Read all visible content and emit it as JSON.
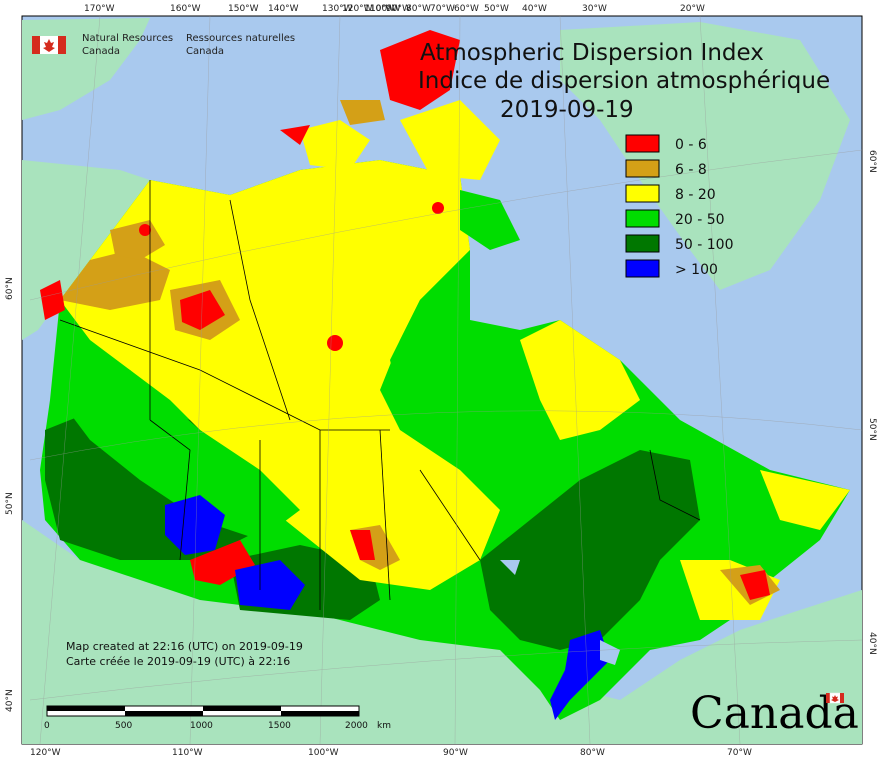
{
  "title": {
    "line1": "Atmospheric Dispersion Index",
    "line2": "Indice de dispersion atmosphérique",
    "date": "2019-09-19"
  },
  "agency": {
    "en_line1": "Natural Resources",
    "en_line2": "Canada",
    "fr_line1": "Ressources naturelles",
    "fr_line2": "Canada"
  },
  "legend": [
    {
      "label": "0 - 6",
      "color": "#ff0000"
    },
    {
      "label": "6 - 8",
      "color": "#d4a017"
    },
    {
      "label": "8 - 20",
      "color": "#ffff00"
    },
    {
      "label": "20 - 50",
      "color": "#00dd00"
    },
    {
      "label": "50 - 100",
      "color": "#007700"
    },
    {
      "label": "> 100",
      "color": "#0000ff"
    }
  ],
  "notes": {
    "created_en": "Map created at 22:16 (UTC) on 2019-09-19",
    "created_fr": "Carte créée le 2019-09-19 (UTC) à 22:16"
  },
  "scale": {
    "labels": [
      "0",
      "500",
      "1000",
      "1500",
      "2000"
    ],
    "unit": "km"
  },
  "axes": {
    "top": [
      "170°W",
      "160°W",
      "150°W",
      "140°W",
      "130°W",
      "120°W",
      "110°W",
      "100°W",
      "90°W",
      "80°W",
      "70°W",
      "60°W",
      "50°W",
      "40°W",
      "30°W",
      "20°W"
    ],
    "bottom": [
      "120°W",
      "110°W",
      "100°W",
      "90°W",
      "80°W",
      "70°W"
    ],
    "left": [
      "60°N",
      "50°N",
      "40°N"
    ],
    "right": [
      "60°N",
      "50°N",
      "40°N"
    ]
  },
  "wordmark": "Canada",
  "colors": {
    "ocean": "#a9c9ee",
    "land_outside": "#a9e3bd",
    "border": "#000000"
  }
}
